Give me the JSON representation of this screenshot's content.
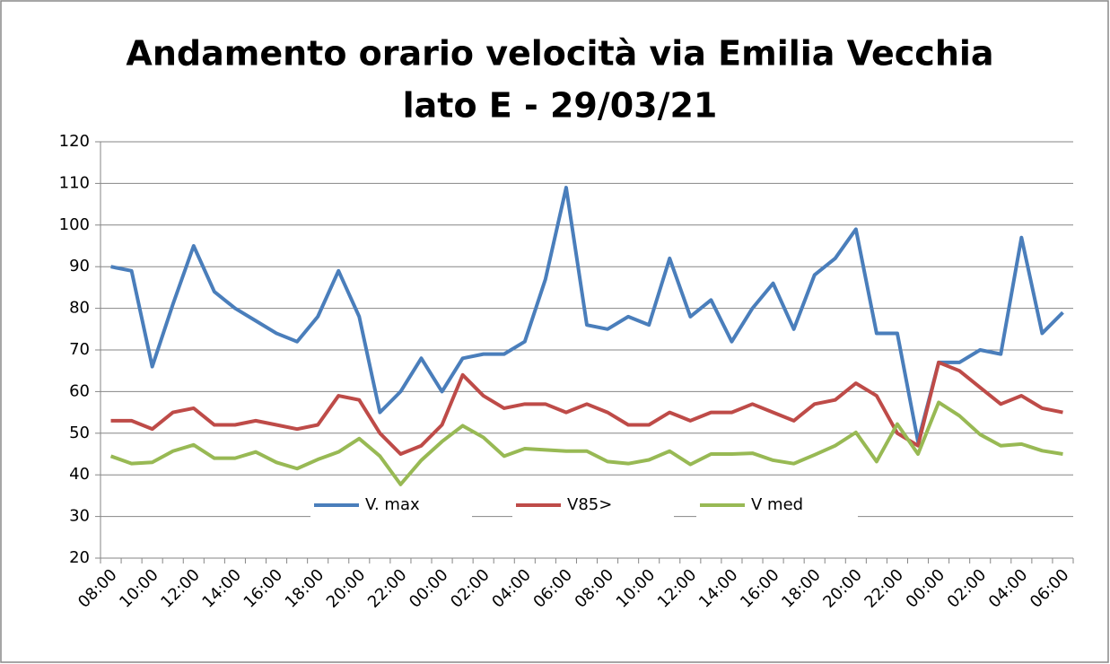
{
  "chart_data": {
    "type": "line",
    "title": [
      "Andamento orario velocità via Emilia Vecchia",
      "lato E - 29/03/21"
    ],
    "categories": [
      "08:00",
      null,
      "10:00",
      null,
      "12:00",
      null,
      "14:00",
      null,
      "16:00",
      null,
      "18:00",
      null,
      "20:00",
      null,
      "22:00",
      null,
      "00:00",
      null,
      "02:00",
      null,
      "04:00",
      null,
      "06:00",
      null,
      "08:00",
      null,
      "10:00",
      null,
      "12:00",
      null,
      "14:00",
      null,
      "16:00",
      null,
      "18:00",
      null,
      "20:00",
      null,
      "22:00",
      null,
      "00:00",
      null,
      "02:00",
      null,
      "04:00",
      null,
      "06:00"
    ],
    "series": [
      {
        "name": "V. max",
        "color": "#4a7ebb",
        "values": [
          90,
          89,
          66,
          81,
          95,
          84,
          80,
          77,
          74,
          72,
          78,
          89,
          78,
          55,
          60,
          68,
          60,
          68,
          69,
          69,
          72,
          87,
          109,
          76,
          75,
          78,
          76,
          92,
          78,
          82,
          72,
          80,
          86,
          75,
          88,
          92,
          99,
          74,
          74,
          48,
          67,
          67,
          70,
          69,
          97,
          74,
          79
        ]
      },
      {
        "name": "V85>",
        "color": "#be4b48",
        "values": [
          53,
          53,
          51,
          55,
          56,
          52,
          52,
          53,
          52,
          51,
          52,
          59,
          58,
          50,
          45,
          47,
          52,
          64,
          59,
          56,
          57,
          57,
          55,
          57,
          55,
          52,
          52,
          55,
          53,
          55,
          55,
          57,
          55,
          53,
          57,
          58,
          62,
          59,
          50,
          47,
          67,
          65,
          61,
          57,
          59,
          56,
          55
        ]
      },
      {
        "name": "V med",
        "color": "#98b954",
        "values": [
          44.5,
          42.7,
          43,
          45.7,
          47.2,
          44,
          44,
          45.5,
          43,
          41.5,
          43.7,
          45.5,
          48.7,
          44.5,
          37.7,
          43.5,
          48,
          51.8,
          49,
          44.5,
          46.3,
          46,
          45.7,
          45.7,
          43.2,
          42.7,
          43.6,
          45.7,
          42.5,
          45,
          45,
          45.2,
          43.5,
          42.7,
          44.8,
          47,
          50.2,
          43.2,
          52.2,
          45,
          57.4,
          54.2,
          49.7,
          47,
          47.4,
          45.8,
          45
        ]
      }
    ],
    "ylim": [
      20,
      120
    ],
    "yticks": [
      20,
      30,
      40,
      50,
      60,
      70,
      80,
      90,
      100,
      110,
      120
    ],
    "grid": true
  }
}
